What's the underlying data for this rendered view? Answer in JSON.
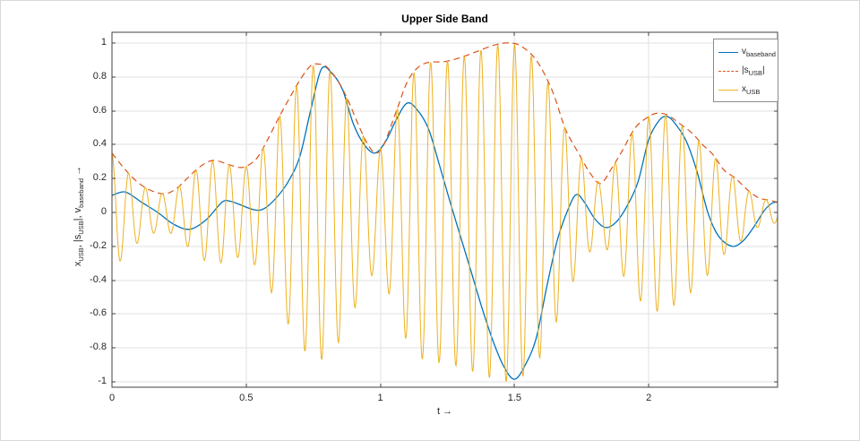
{
  "figure": {
    "title": "Upper Side Band",
    "xlabel": "t →",
    "ylabel_parts": [
      {
        "t": "x"
      },
      {
        "sub": "USB"
      },
      {
        "t": ", |s"
      },
      {
        "sub": "USB"
      },
      {
        "t": "|, v"
      },
      {
        "sub": "baseband"
      },
      {
        "t": " →"
      }
    ]
  },
  "legend": {
    "entries": [
      {
        "name": "v-baseband",
        "color": "#0072BD",
        "dash": "solid",
        "parts": [
          {
            "t": "v"
          },
          {
            "sub": "baseband"
          }
        ]
      },
      {
        "name": "s-usb-magnitude",
        "color": "#D95319",
        "dash": "dashed",
        "parts": [
          {
            "t": "|s"
          },
          {
            "sub": "USB"
          },
          {
            "t": "|"
          }
        ]
      },
      {
        "name": "x-usb",
        "color": "#EDB120",
        "dash": "solid",
        "parts": [
          {
            "t": "x"
          },
          {
            "sub": "USB"
          }
        ]
      }
    ]
  },
  "chart_data": {
    "type": "line",
    "title": "Upper Side Band",
    "xlabel": "t →",
    "ylabel": "x_USB, |s_USB|, v_baseband →",
    "xlim": [
      0,
      2.48
    ],
    "ylim": [
      -1.032,
      1.063
    ],
    "grid": true,
    "legend_position": "northeast",
    "axis_color": "#404040",
    "grid_color": "#e2e2e2",
    "xticks": {
      "values": [
        0,
        0.5,
        1,
        1.5,
        2
      ],
      "labels": [
        "0",
        "0.5",
        "1",
        "1.5",
        "2"
      ]
    },
    "yticks": {
      "values": [
        -1,
        -0.8,
        -0.6,
        -0.4,
        -0.2,
        0,
        0.2,
        0.4,
        0.6,
        0.8,
        1
      ],
      "labels": [
        "-1",
        "-0.8",
        "-0.6",
        "-0.4",
        "-0.2",
        "0",
        "0.2",
        "0.4",
        "0.6",
        "0.8",
        "1"
      ]
    },
    "series": [
      {
        "name": "v_baseband",
        "color": "#0072BD",
        "style": "solid",
        "width": 1.3,
        "points": [
          [
            0.0,
            0.1
          ],
          [
            0.05,
            0.12
          ],
          [
            0.11,
            0.06
          ],
          [
            0.17,
            0.0
          ],
          [
            0.23,
            -0.07
          ],
          [
            0.29,
            -0.1
          ],
          [
            0.35,
            -0.045
          ],
          [
            0.41,
            0.06
          ],
          [
            0.44,
            0.066
          ],
          [
            0.47,
            0.05
          ],
          [
            0.53,
            0.015
          ],
          [
            0.57,
            0.025
          ],
          [
            0.62,
            0.1
          ],
          [
            0.66,
            0.19
          ],
          [
            0.7,
            0.33
          ],
          [
            0.74,
            0.6
          ],
          [
            0.78,
            0.845
          ],
          [
            0.82,
            0.82
          ],
          [
            0.86,
            0.72
          ],
          [
            0.9,
            0.52
          ],
          [
            0.94,
            0.4
          ],
          [
            0.98,
            0.35
          ],
          [
            1.02,
            0.42
          ],
          [
            1.06,
            0.55
          ],
          [
            1.1,
            0.645
          ],
          [
            1.14,
            0.6
          ],
          [
            1.18,
            0.49
          ],
          [
            1.22,
            0.28
          ],
          [
            1.26,
            0.06
          ],
          [
            1.3,
            -0.15
          ],
          [
            1.34,
            -0.36
          ],
          [
            1.38,
            -0.57
          ],
          [
            1.42,
            -0.76
          ],
          [
            1.46,
            -0.91
          ],
          [
            1.5,
            -0.985
          ],
          [
            1.54,
            -0.9
          ],
          [
            1.58,
            -0.745
          ],
          [
            1.62,
            -0.44
          ],
          [
            1.66,
            -0.16
          ],
          [
            1.7,
            0.02
          ],
          [
            1.73,
            0.105
          ],
          [
            1.76,
            0.06
          ],
          [
            1.8,
            -0.04
          ],
          [
            1.84,
            -0.09
          ],
          [
            1.88,
            -0.055
          ],
          [
            1.92,
            0.04
          ],
          [
            1.96,
            0.18
          ],
          [
            2.0,
            0.43
          ],
          [
            2.04,
            0.545
          ],
          [
            2.07,
            0.565
          ],
          [
            2.1,
            0.52
          ],
          [
            2.14,
            0.42
          ],
          [
            2.18,
            0.24
          ],
          [
            2.22,
            0.0
          ],
          [
            2.26,
            -0.14
          ],
          [
            2.31,
            -0.2
          ],
          [
            2.35,
            -0.17
          ],
          [
            2.39,
            -0.09
          ],
          [
            2.43,
            0.01
          ],
          [
            2.46,
            0.055
          ],
          [
            2.48,
            0.06
          ]
        ]
      },
      {
        "name": "|s_USB|",
        "color": "#D95319",
        "style": "dashed",
        "width": 1.2,
        "points": [
          [
            0.0,
            0.35
          ],
          [
            0.04,
            0.27
          ],
          [
            0.08,
            0.2
          ],
          [
            0.12,
            0.15
          ],
          [
            0.16,
            0.12
          ],
          [
            0.2,
            0.11
          ],
          [
            0.24,
            0.14
          ],
          [
            0.28,
            0.2
          ],
          [
            0.32,
            0.26
          ],
          [
            0.36,
            0.3
          ],
          [
            0.39,
            0.305
          ],
          [
            0.43,
            0.285
          ],
          [
            0.47,
            0.266
          ],
          [
            0.5,
            0.272
          ],
          [
            0.54,
            0.32
          ],
          [
            0.58,
            0.43
          ],
          [
            0.62,
            0.555
          ],
          [
            0.66,
            0.67
          ],
          [
            0.7,
            0.78
          ],
          [
            0.74,
            0.865
          ],
          [
            0.77,
            0.875
          ],
          [
            0.8,
            0.858
          ],
          [
            0.84,
            0.78
          ],
          [
            0.88,
            0.66
          ],
          [
            0.92,
            0.51
          ],
          [
            0.95,
            0.41
          ],
          [
            0.98,
            0.352
          ],
          [
            1.01,
            0.39
          ],
          [
            1.06,
            0.6
          ],
          [
            1.1,
            0.77
          ],
          [
            1.14,
            0.855
          ],
          [
            1.18,
            0.885
          ],
          [
            1.24,
            0.89
          ],
          [
            1.3,
            0.915
          ],
          [
            1.36,
            0.95
          ],
          [
            1.42,
            0.985
          ],
          [
            1.47,
            1.0
          ],
          [
            1.52,
            0.985
          ],
          [
            1.58,
            0.9
          ],
          [
            1.64,
            0.72
          ],
          [
            1.69,
            0.49
          ],
          [
            1.74,
            0.345
          ],
          [
            1.78,
            0.235
          ],
          [
            1.82,
            0.17
          ],
          [
            1.86,
            0.255
          ],
          [
            1.9,
            0.36
          ],
          [
            1.95,
            0.5
          ],
          [
            2.0,
            0.565
          ],
          [
            2.03,
            0.585
          ],
          [
            2.07,
            0.575
          ],
          [
            2.11,
            0.53
          ],
          [
            2.16,
            0.47
          ],
          [
            2.2,
            0.4
          ],
          [
            2.24,
            0.34
          ],
          [
            2.28,
            0.25
          ],
          [
            2.32,
            0.205
          ],
          [
            2.37,
            0.13
          ],
          [
            2.41,
            0.085
          ],
          [
            2.44,
            0.075
          ],
          [
            2.48,
            0.06
          ]
        ]
      },
      {
        "name": "x_USB",
        "color": "#EDB120",
        "style": "solid",
        "width": 1.0,
        "generator": {
          "kind": "am_modulated_carrier",
          "envelope_series": "|s_USB|",
          "carrier_freq_hz": 16,
          "phase_rad": 0,
          "sample_step": 0.002
        }
      }
    ]
  }
}
